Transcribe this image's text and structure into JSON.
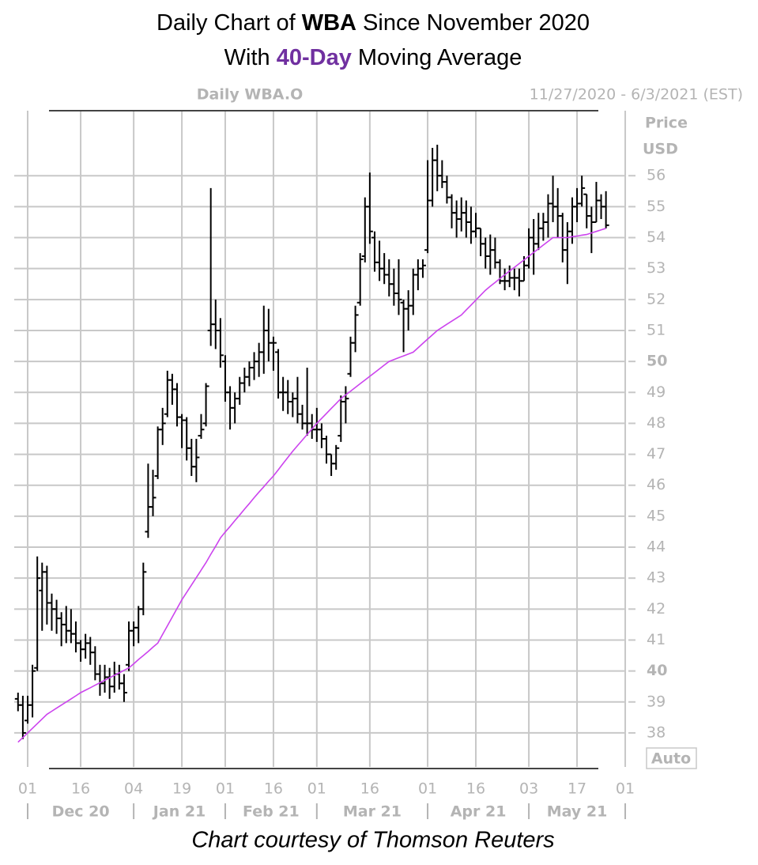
{
  "chart_data": {
    "type": "ohlc",
    "title": [
      "Daily Chart of ",
      "WBA",
      " Since November 2020"
    ],
    "subtitle": [
      "With ",
      "40-Day",
      " Moving Average"
    ],
    "highlight_color": "#7030a0",
    "symbol_label": "Daily WBA.O",
    "range_label": "11/27/2020 - 6/3/2021 (EST)",
    "y_axis_label": [
      "Price",
      "USD"
    ],
    "scale_label": "Auto",
    "footer": "Chart courtesy of Thomson Reuters",
    "bar_color": "#000000",
    "grid": true,
    "grid_color": "#c8c8c8",
    "ylim": [
      36.9,
      58.1
    ],
    "yticks": [
      38,
      39,
      40,
      41,
      42,
      43,
      44,
      45,
      46,
      47,
      48,
      49,
      50,
      51,
      52,
      53,
      54,
      55,
      56
    ],
    "x": [
      "2020-11-27",
      "2020-11-30",
      "2020-12-01",
      "2020-12-02",
      "2020-12-03",
      "2020-12-04",
      "2020-12-07",
      "2020-12-08",
      "2020-12-09",
      "2020-12-10",
      "2020-12-11",
      "2020-12-14",
      "2020-12-15",
      "2020-12-16",
      "2020-12-17",
      "2020-12-18",
      "2020-12-21",
      "2020-12-22",
      "2020-12-23",
      "2020-12-24",
      "2020-12-28",
      "2020-12-29",
      "2020-12-30",
      "2020-12-31",
      "2021-01-04",
      "2021-01-05",
      "2021-01-06",
      "2021-01-07",
      "2021-01-08",
      "2021-01-11",
      "2021-01-12",
      "2021-01-13",
      "2021-01-14",
      "2021-01-15",
      "2021-01-19",
      "2021-01-20",
      "2021-01-21",
      "2021-01-22",
      "2021-01-25",
      "2021-01-26",
      "2021-01-27",
      "2021-01-28",
      "2021-01-29",
      "2021-02-01",
      "2021-02-02",
      "2021-02-03",
      "2021-02-04",
      "2021-02-05",
      "2021-02-08",
      "2021-02-09",
      "2021-02-10",
      "2021-02-11",
      "2021-02-12",
      "2021-02-16",
      "2021-02-17",
      "2021-02-18",
      "2021-02-19",
      "2021-02-22",
      "2021-02-23",
      "2021-02-24",
      "2021-02-25",
      "2021-02-26",
      "2021-03-01",
      "2021-03-02",
      "2021-03-03",
      "2021-03-04",
      "2021-03-05",
      "2021-03-08",
      "2021-03-09",
      "2021-03-10",
      "2021-03-11",
      "2021-03-12",
      "2021-03-15",
      "2021-03-16",
      "2021-03-17",
      "2021-03-18",
      "2021-03-19",
      "2021-03-22",
      "2021-03-23",
      "2021-03-24",
      "2021-03-25",
      "2021-03-26",
      "2021-03-29",
      "2021-03-30",
      "2021-03-31",
      "2021-04-01",
      "2021-04-05",
      "2021-04-06",
      "2021-04-07",
      "2021-04-08",
      "2021-04-09",
      "2021-04-12",
      "2021-04-13",
      "2021-04-14",
      "2021-04-15",
      "2021-04-16",
      "2021-04-19",
      "2021-04-20",
      "2021-04-21",
      "2021-04-22",
      "2021-04-23",
      "2021-04-26",
      "2021-04-27",
      "2021-04-28",
      "2021-04-29",
      "2021-04-30",
      "2021-05-03",
      "2021-05-04",
      "2021-05-05",
      "2021-05-06",
      "2021-05-07",
      "2021-05-10",
      "2021-05-11",
      "2021-05-12",
      "2021-05-13",
      "2021-05-14",
      "2021-05-17",
      "2021-05-18",
      "2021-05-19",
      "2021-05-20",
      "2021-05-21",
      "2021-05-24",
      "2021-05-25",
      "2021-05-26",
      "2021-05-27",
      "2021-05-28",
      "2021-06-01",
      "2021-06-02",
      "2021-06-03"
    ],
    "open": [
      39.1,
      38.9,
      38.4,
      38.9,
      40.1,
      42.6,
      43.2,
      42.2,
      42.0,
      41.7,
      41.5,
      41.3,
      41.2,
      40.9,
      40.7,
      40.9,
      40.6,
      39.9,
      39.6,
      39.8,
      39.5,
      39.9,
      39.6,
      40.2,
      41.3,
      41.4,
      42.0,
      44.5,
      45.3,
      46.3,
      47.8,
      48.3,
      49.4,
      49.1,
      48.2,
      48.1,
      47.2,
      46.6,
      47.6,
      48.0,
      51.0,
      51.2,
      51.0,
      50.0,
      49.0,
      48.5,
      48.8,
      49.3,
      49.5,
      49.8,
      50.0,
      50.3,
      51.0,
      50.6,
      50.3,
      49.0,
      49.0,
      48.7,
      48.8,
      48.3,
      48.0,
      48.0,
      47.8,
      47.8,
      47.5,
      47.0,
      46.7,
      47.6,
      48.7,
      49.6,
      50.6,
      51.9,
      53.4,
      55.0,
      54.0,
      53.2,
      53.0,
      52.8,
      52.5,
      52.2,
      51.9,
      51.7,
      51.8,
      52.8,
      53.0,
      53.6,
      55.2,
      56.5,
      56.0,
      55.8,
      55.3,
      54.8,
      54.6,
      54.8,
      54.5,
      54.2,
      54.3,
      53.8,
      53.4,
      53.6,
      53.2,
      52.6,
      52.6,
      52.7,
      52.7,
      52.6,
      53.1,
      54.0,
      53.8,
      54.3,
      54.5,
      55.1,
      55.0,
      54.7,
      53.6,
      54.2,
      55.0,
      55.1,
      55.4,
      54.7,
      54.5,
      55.2,
      55.0,
      null,
      null,
      null,
      null,
      null,
      null
    ],
    "high": [
      39.3,
      39.2,
      39.2,
      40.2,
      43.7,
      43.5,
      43.4,
      42.5,
      42.3,
      41.9,
      42.1,
      42.0,
      41.6,
      41.0,
      41.2,
      41.1,
      40.8,
      40.2,
      40.2,
      40.1,
      40.3,
      40.2,
      39.9,
      41.6,
      41.6,
      42.1,
      43.5,
      46.7,
      46.5,
      47.9,
      48.5,
      49.7,
      49.6,
      49.3,
      48.3,
      48.2,
      47.5,
      47.5,
      48.3,
      49.3,
      55.6,
      52.0,
      51.4,
      50.2,
      49.2,
      49.0,
      49.5,
      49.8,
      50.0,
      50.3,
      50.6,
      51.8,
      51.7,
      50.8,
      50.4,
      49.5,
      49.4,
      49.0,
      49.5,
      48.6,
      49.8,
      48.3,
      48.5,
      48.0,
      47.6,
      47.0,
      47.3,
      48.9,
      49.2,
      50.8,
      51.8,
      53.5,
      55.3,
      56.1,
      54.2,
      53.9,
      53.5,
      53.3,
      53.0,
      53.3,
      52.0,
      52.3,
      53.0,
      53.3,
      53.3,
      56.5,
      56.9,
      57.0,
      56.5,
      56.0,
      55.4,
      55.2,
      55.3,
      55.2,
      55.0,
      54.8,
      54.3,
      54.0,
      54.1,
      54.0,
      53.3,
      53.0,
      53.1,
      53.0,
      53.0,
      53.4,
      54.3,
      54.6,
      54.8,
      54.8,
      55.4,
      56.0,
      55.6,
      54.8,
      54.5,
      55.3,
      55.6,
      56.0,
      55.4,
      55.0,
      55.8,
      55.4,
      55.5,
      null,
      null,
      null,
      null,
      null,
      null
    ],
    "low": [
      38.7,
      37.8,
      38.3,
      38.5,
      40.0,
      41.3,
      41.5,
      41.3,
      41.2,
      40.8,
      40.9,
      40.9,
      40.6,
      40.3,
      40.4,
      40.2,
      39.7,
      39.2,
      39.3,
      39.1,
      39.3,
      39.4,
      39.0,
      40.0,
      40.8,
      40.9,
      41.8,
      44.3,
      45.0,
      46.2,
      47.3,
      48.2,
      48.6,
      47.9,
      47.2,
      46.8,
      46.3,
      46.1,
      47.5,
      47.9,
      50.5,
      50.4,
      49.8,
      48.7,
      47.8,
      48.0,
      48.6,
      49.0,
      49.2,
      49.4,
      49.5,
      49.6,
      50.0,
      49.7,
      48.8,
      48.4,
      48.3,
      48.2,
      48.0,
      47.8,
      47.6,
      47.5,
      47.4,
      47.2,
      46.7,
      46.3,
      46.5,
      47.4,
      48.0,
      49.5,
      50.3,
      51.8,
      53.2,
      53.8,
      52.9,
      52.6,
      52.5,
      52.1,
      51.8,
      51.5,
      50.3,
      51.0,
      51.5,
      52.3,
      52.7,
      53.5,
      55.0,
      55.5,
      55.6,
      55.1,
      54.3,
      54.0,
      54.2,
      54.0,
      53.8,
      54.0,
      53.4,
      53.0,
      52.8,
      53.0,
      52.5,
      52.3,
      52.4,
      52.3,
      52.1,
      52.6,
      53.0,
      52.8,
      53.6,
      53.9,
      54.0,
      54.5,
      54.0,
      53.2,
      52.5,
      53.8,
      54.5,
      55.0,
      54.3,
      53.5,
      54.5,
      54.6,
      54.3,
      null,
      null,
      null,
      null,
      null,
      null
    ],
    "close": [
      38.9,
      38.0,
      38.9,
      40.0,
      43.0,
      43.2,
      42.2,
      42.0,
      41.7,
      41.5,
      41.3,
      41.2,
      40.9,
      40.7,
      40.9,
      40.6,
      39.9,
      39.6,
      39.8,
      39.5,
      39.9,
      39.6,
      39.3,
      41.3,
      41.4,
      42.0,
      43.2,
      45.3,
      45.6,
      47.8,
      48.0,
      49.4,
      49.1,
      48.2,
      48.1,
      47.2,
      46.6,
      46.9,
      47.8,
      49.2,
      51.2,
      51.0,
      50.2,
      49.0,
      48.5,
      48.8,
      49.3,
      49.5,
      49.8,
      50.0,
      50.3,
      51.0,
      50.6,
      50.6,
      49.0,
      49.0,
      48.7,
      48.8,
      48.3,
      48.0,
      48.0,
      47.8,
      47.8,
      47.5,
      47.0,
      46.7,
      47.2,
      48.7,
      48.8,
      50.6,
      51.5,
      53.3,
      55.0,
      54.2,
      53.2,
      53.0,
      52.8,
      52.5,
      52.2,
      52.0,
      51.7,
      51.8,
      52.8,
      53.0,
      53.1,
      55.2,
      56.5,
      56.0,
      55.8,
      55.3,
      54.8,
      54.6,
      54.8,
      54.5,
      54.2,
      54.3,
      53.8,
      53.4,
      53.6,
      53.2,
      52.6,
      52.6,
      52.7,
      52.7,
      52.6,
      53.1,
      54.0,
      53.8,
      54.3,
      54.5,
      55.1,
      55.0,
      54.7,
      53.6,
      54.2,
      55.0,
      55.1,
      55.6,
      54.7,
      54.5,
      55.2,
      55.0,
      54.4,
      null,
      null,
      null,
      null,
      null,
      null
    ],
    "moving_average": {
      "color": "#cc44ee",
      "values": [
        37.7,
        37.85,
        38.0,
        38.15,
        38.3,
        38.45,
        38.6,
        38.7,
        38.8,
        38.9,
        39.0,
        39.1,
        39.2,
        39.3,
        39.38,
        39.46,
        39.54,
        39.62,
        39.7,
        39.78,
        39.86,
        39.94,
        40.02,
        40.1,
        40.23,
        40.37,
        40.5,
        40.63,
        40.77,
        40.9,
        41.18,
        41.46,
        41.74,
        42.02,
        42.3,
        42.54,
        42.78,
        43.02,
        43.26,
        43.5,
        43.77,
        44.03,
        44.3,
        44.49,
        44.67,
        44.86,
        45.04,
        45.23,
        45.41,
        45.6,
        45.78,
        45.95,
        46.13,
        46.3,
        46.5,
        46.7,
        46.9,
        47.1,
        47.28,
        47.46,
        47.64,
        47.82,
        48.0,
        48.16,
        48.32,
        48.48,
        48.64,
        48.8,
        48.92,
        49.04,
        49.16,
        49.28,
        49.4,
        49.52,
        49.64,
        49.76,
        49.88,
        50.0,
        50.06,
        50.12,
        50.18,
        50.24,
        50.3,
        50.44,
        50.58,
        50.72,
        50.86,
        51.0,
        51.1,
        51.2,
        51.3,
        51.4,
        51.5,
        51.66,
        51.82,
        51.98,
        52.14,
        52.3,
        52.43,
        52.55,
        52.68,
        52.8,
        52.92,
        53.04,
        53.16,
        53.28,
        53.4,
        53.52,
        53.64,
        53.76,
        53.88,
        54.0,
        54.0,
        54.0,
        54.0,
        54.03,
        54.05,
        54.08,
        54.1,
        54.15,
        54.2,
        54.25,
        54.3,
        null,
        null,
        null,
        null,
        null,
        null
      ]
    },
    "xticks": [
      {
        "value": "2020-12-01",
        "label": "01"
      },
      {
        "value": "2020-12-16",
        "label": "16"
      },
      {
        "value": "2021-01-04",
        "label": "04"
      },
      {
        "value": "2021-01-19",
        "label": "19"
      },
      {
        "value": "2021-02-01",
        "label": "01"
      },
      {
        "value": "2021-02-16",
        "label": "16"
      },
      {
        "value": "2021-03-01",
        "label": "01"
      },
      {
        "value": "2021-03-16",
        "label": "16"
      },
      {
        "value": "2021-04-01",
        "label": "01"
      },
      {
        "value": "2021-04-16",
        "label": "16"
      },
      {
        "value": "2021-05-03",
        "label": "03"
      },
      {
        "value": "2021-05-17",
        "label": "17"
      },
      {
        "value": "2021-06-01",
        "label": "01"
      }
    ],
    "month_labels": [
      "Dec 20",
      "Jan 21",
      "Feb 21",
      "Mar 21",
      "Apr 21",
      "May 21"
    ],
    "month_starts": [
      "2020-12-01",
      "2021-01-04",
      "2021-02-01",
      "2021-03-01",
      "2021-04-01",
      "2021-05-03",
      "2021-06-01"
    ]
  }
}
